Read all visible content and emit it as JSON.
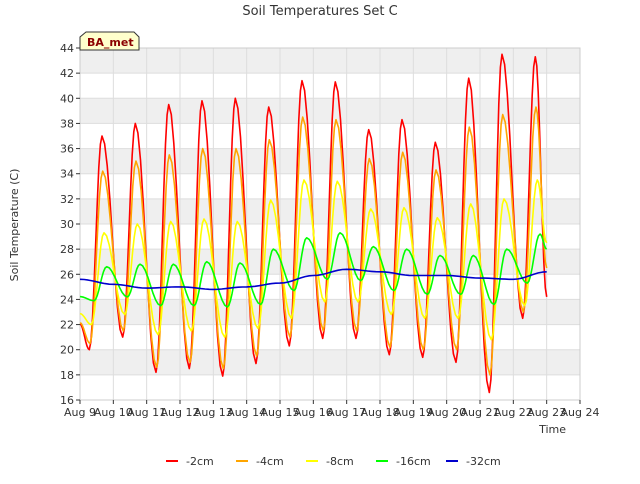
{
  "chart_data": {
    "type": "line",
    "title": "Soil Temperatures Set C",
    "xlabel": "Time",
    "ylabel": "Soil Temperature (C)",
    "site_badge": "BA_met",
    "xlim": [
      "2023-08-09",
      "2023-08-24"
    ],
    "ylim": [
      16,
      44
    ],
    "x_tick_labels": [
      "Aug 9",
      "Aug 10",
      "Aug 11",
      "Aug 12",
      "Aug 13",
      "Aug 14",
      "Aug 15",
      "Aug 16",
      "Aug 17",
      "Aug 18",
      "Aug 19",
      "Aug 20",
      "Aug 21",
      "Aug 22",
      "Aug 23",
      "Aug 24"
    ],
    "y_ticks": [
      16,
      18,
      20,
      22,
      24,
      26,
      28,
      30,
      32,
      34,
      36,
      38,
      40,
      42,
      44
    ],
    "grid": true,
    "legend_position": "bottom",
    "x": [
      "2023-08-09",
      "2023-08-10",
      "2023-08-11",
      "2023-08-12",
      "2023-08-13",
      "2023-08-14",
      "2023-08-15",
      "2023-08-16",
      "2023-08-17",
      "2023-08-18",
      "2023-08-19",
      "2023-08-20",
      "2023-08-21",
      "2023-08-22",
      "2023-08-23"
    ],
    "series": [
      {
        "name": "-2cm",
        "color": "#ff0000",
        "daily_min": [
          20.0,
          21.0,
          18.2,
          18.5,
          17.9,
          18.9,
          20.3,
          20.9,
          20.9,
          19.6,
          19.4,
          19.0,
          16.6,
          22.5,
          24.2
        ],
        "daily_max": [
          37.0,
          38.0,
          39.5,
          39.8,
          40.0,
          39.3,
          41.4,
          41.3,
          37.5,
          38.3,
          36.5,
          41.6,
          43.5,
          43.3,
          24.2
        ]
      },
      {
        "name": "-4cm",
        "color": "#ffa500",
        "daily_min": [
          20.5,
          21.5,
          18.6,
          19.0,
          18.5,
          19.5,
          21.0,
          21.5,
          21.5,
          20.2,
          20.0,
          20.0,
          18.0,
          23.0,
          26.5
        ],
        "daily_max": [
          34.2,
          35.0,
          35.5,
          36.0,
          36.0,
          36.7,
          38.5,
          38.3,
          35.2,
          35.7,
          34.3,
          37.7,
          38.7,
          39.3,
          26.5
        ]
      },
      {
        "name": "-8cm",
        "color": "#ffff00",
        "daily_min": [
          22.0,
          22.8,
          21.2,
          21.5,
          21.0,
          21.7,
          22.5,
          23.8,
          23.8,
          22.8,
          22.5,
          22.5,
          20.8,
          23.5,
          28.5
        ],
        "daily_max": [
          29.3,
          30.0,
          30.2,
          30.4,
          30.2,
          31.9,
          33.5,
          33.4,
          31.2,
          31.3,
          30.5,
          31.6,
          32.0,
          33.5,
          28.5
        ]
      },
      {
        "name": "-16cm",
        "color": "#00ff00",
        "daily_min": [
          23.9,
          24.2,
          23.5,
          23.5,
          23.4,
          23.6,
          24.7,
          25.6,
          25.5,
          24.7,
          24.4,
          24.4,
          23.6,
          25.3,
          28.0
        ],
        "daily_max": [
          26.6,
          26.8,
          26.8,
          27.0,
          26.9,
          28.0,
          28.9,
          29.3,
          28.2,
          28.0,
          27.5,
          27.5,
          28.0,
          29.2,
          28.0
        ]
      },
      {
        "name": "-32cm",
        "color": "#0000cc",
        "daily_values": [
          25.6,
          25.2,
          24.9,
          25.0,
          24.8,
          25.0,
          25.3,
          25.9,
          26.4,
          26.2,
          25.9,
          25.9,
          25.7,
          25.6,
          26.2
        ]
      }
    ]
  }
}
